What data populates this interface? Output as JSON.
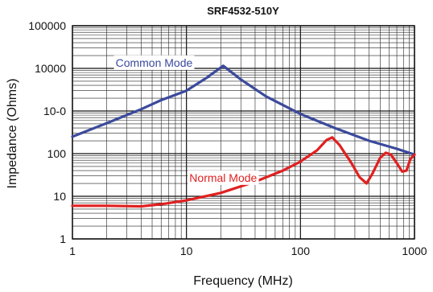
{
  "chart_data": {
    "type": "line",
    "title": "SRF4532-510Y",
    "xlabel": "Frequency (MHz)",
    "ylabel": "Impedance (Ohms)",
    "x_scale": "log",
    "y_scale": "log",
    "xlim": [
      1,
      1000
    ],
    "ylim": [
      1,
      100000
    ],
    "x_ticks": [
      {
        "value": 1,
        "label": "1"
      },
      {
        "value": 10,
        "label": "10"
      },
      {
        "value": 100,
        "label": "100"
      },
      {
        "value": 1000,
        "label": "1000"
      }
    ],
    "y_ticks": [
      {
        "value": 1,
        "label": "1"
      },
      {
        "value": 10,
        "label": "10"
      },
      {
        "value": 100,
        "label": "100"
      },
      {
        "value": 1000,
        "label": "10-0"
      },
      {
        "value": 10000,
        "label": "10000"
      },
      {
        "value": 100000,
        "label": "100000"
      }
    ],
    "grid": true,
    "series": [
      {
        "name": "Common Mode",
        "color": "#3b4a9c",
        "label_at": {
          "x": 5.2,
          "y": 11000
        },
        "points": [
          {
            "x": 1,
            "y": 250
          },
          {
            "x": 2,
            "y": 520
          },
          {
            "x": 4,
            "y": 1100
          },
          {
            "x": 6,
            "y": 1800
          },
          {
            "x": 10,
            "y": 3000
          },
          {
            "x": 15,
            "y": 6000
          },
          {
            "x": 21,
            "y": 11500
          },
          {
            "x": 30,
            "y": 5500
          },
          {
            "x": 50,
            "y": 2200
          },
          {
            "x": 100,
            "y": 850
          },
          {
            "x": 200,
            "y": 400
          },
          {
            "x": 400,
            "y": 200
          },
          {
            "x": 700,
            "y": 130
          },
          {
            "x": 1000,
            "y": 95
          }
        ]
      },
      {
        "name": "Normal Mode",
        "color": "#e02020",
        "label_at": {
          "x": 21,
          "y": 22
        },
        "points": [
          {
            "x": 1,
            "y": 6
          },
          {
            "x": 2,
            "y": 6
          },
          {
            "x": 4,
            "y": 5.8
          },
          {
            "x": 6,
            "y": 6.5
          },
          {
            "x": 10,
            "y": 8
          },
          {
            "x": 20,
            "y": 12
          },
          {
            "x": 40,
            "y": 22
          },
          {
            "x": 70,
            "y": 40
          },
          {
            "x": 100,
            "y": 65
          },
          {
            "x": 140,
            "y": 120
          },
          {
            "x": 170,
            "y": 210
          },
          {
            "x": 190,
            "y": 240
          },
          {
            "x": 220,
            "y": 160
          },
          {
            "x": 280,
            "y": 60
          },
          {
            "x": 330,
            "y": 28
          },
          {
            "x": 380,
            "y": 20
          },
          {
            "x": 430,
            "y": 35
          },
          {
            "x": 500,
            "y": 80
          },
          {
            "x": 560,
            "y": 105
          },
          {
            "x": 620,
            "y": 95
          },
          {
            "x": 700,
            "y": 60
          },
          {
            "x": 780,
            "y": 38
          },
          {
            "x": 850,
            "y": 40
          },
          {
            "x": 920,
            "y": 75
          },
          {
            "x": 1000,
            "y": 95
          }
        ]
      }
    ]
  }
}
